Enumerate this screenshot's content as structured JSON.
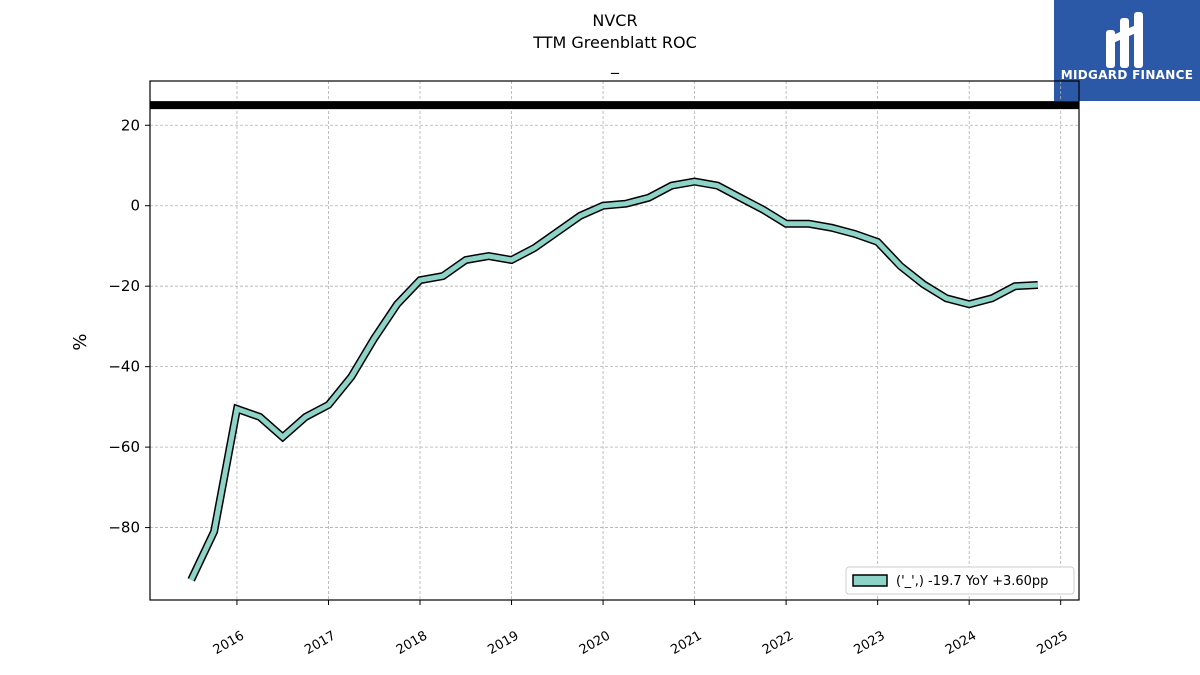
{
  "chart_data": {
    "type": "line",
    "title": "NVCR",
    "subtitle": "TTM Greenblatt ROC",
    "subtitle2": "_",
    "xlabel": "",
    "ylabel": "%",
    "xlim": [
      2015.05,
      2025.2
    ],
    "ylim": [
      -98,
      31
    ],
    "grid": true,
    "legend_position": "bottom-right",
    "x_ticks": [
      "2016",
      "2017",
      "2018",
      "2019",
      "2020",
      "2021",
      "2022",
      "2023",
      "2024",
      "2025"
    ],
    "y_ticks": [
      20,
      0,
      -20,
      -40,
      -60,
      -80
    ],
    "y_tick_labels": [
      "20",
      "0",
      "−20",
      "−40",
      "−60",
      "−80"
    ],
    "reference_line": 25,
    "series": [
      {
        "name": "('_',) -19.7 YoY +3.60pp",
        "color": "#8dd3c7",
        "x": [
          2015.5,
          2015.75,
          2016.0,
          2016.25,
          2016.5,
          2016.75,
          2017.0,
          2017.25,
          2017.5,
          2017.75,
          2018.0,
          2018.25,
          2018.5,
          2018.75,
          2019.0,
          2019.25,
          2019.5,
          2019.75,
          2020.0,
          2020.25,
          2020.5,
          2020.75,
          2021.0,
          2021.25,
          2021.5,
          2021.75,
          2022.0,
          2022.25,
          2022.5,
          2022.75,
          2023.0,
          2023.25,
          2023.5,
          2023.75,
          2024.0,
          2024.25,
          2024.5,
          2024.75
        ],
        "y": [
          -93,
          -81,
          -50.5,
          -52.5,
          -57.5,
          -52.5,
          -49.5,
          -42.5,
          -33,
          -24.5,
          -18.5,
          -17.5,
          -13.5,
          -12.5,
          -13.5,
          -10.5,
          -6.5,
          -2.5,
          0,
          0.5,
          2,
          5,
          6,
          5,
          2,
          -1,
          -4.5,
          -4.5,
          -5.5,
          -7,
          -9,
          -15,
          -19.5,
          -23,
          -24.5,
          -23,
          -20,
          -19.7
        ]
      }
    ]
  },
  "logo": {
    "text": "MIDGARD FINANCE"
  }
}
